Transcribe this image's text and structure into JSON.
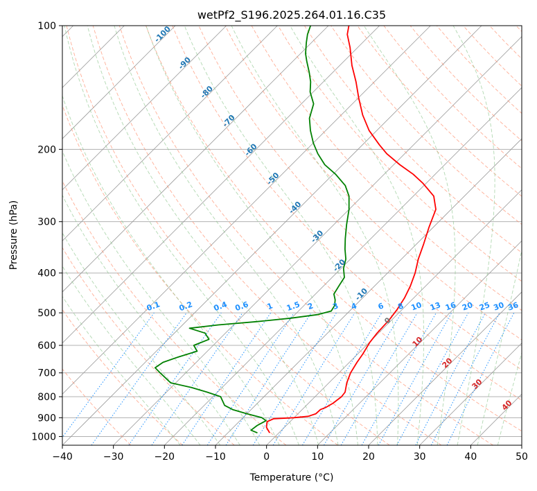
{
  "chart_data": {
    "type": "line",
    "title": "wetPf2_S196.2025.264.01.16.C35",
    "xlabel": "Temperature (°C)",
    "ylabel": "Pressure (hPa)",
    "xlim": [
      -40,
      50
    ],
    "ylim": [
      1050,
      100
    ],
    "yscale": "log",
    "grid": true,
    "x_ticks": [
      -40,
      -30,
      -20,
      -10,
      0,
      10,
      20,
      30,
      40,
      50
    ],
    "y_ticks": [
      100,
      200,
      300,
      400,
      500,
      600,
      700,
      800,
      900,
      1000
    ],
    "series": [
      {
        "role": "temperature",
        "color": "#ff0000",
        "points": [
          [
            -1.8,
            980
          ],
          [
            -3.5,
            950
          ],
          [
            -4.5,
            920
          ],
          [
            -3.8,
            905
          ],
          [
            0,
            900
          ],
          [
            2.5,
            893
          ],
          [
            3.5,
            880
          ],
          [
            3.6,
            860
          ],
          [
            4.2,
            850
          ],
          [
            4.8,
            830
          ],
          [
            5.2,
            800
          ],
          [
            5.0,
            780
          ],
          [
            3.5,
            740
          ],
          [
            2.3,
            700
          ],
          [
            1.5,
            660
          ],
          [
            1.0,
            630
          ],
          [
            0.1,
            590
          ],
          [
            -0.3,
            560
          ],
          [
            -0.5,
            520
          ],
          [
            -1.0,
            490
          ],
          [
            -1.8,
            460
          ],
          [
            -3.0,
            430
          ],
          [
            -4.6,
            400
          ],
          [
            -6.7,
            370
          ],
          [
            -8.6,
            340
          ],
          [
            -10.8,
            310
          ],
          [
            -13.0,
            280
          ],
          [
            -16.0,
            260
          ],
          [
            -18.5,
            250
          ],
          [
            -20.6,
            242
          ],
          [
            -24.3,
            230
          ],
          [
            -28.8,
            218
          ],
          [
            -33.5,
            205
          ],
          [
            -36.7,
            195
          ],
          [
            -41.5,
            180
          ],
          [
            -45.8,
            165
          ],
          [
            -49.9,
            150
          ],
          [
            -53.6,
            137
          ],
          [
            -57.6,
            125
          ],
          [
            -61.5,
            113
          ],
          [
            -64.6,
            105
          ],
          [
            -66.0,
            100
          ]
        ]
      },
      {
        "role": "dewpoint",
        "color": "#008000",
        "points": [
          [
            -4.2,
            980
          ],
          [
            -6.0,
            965
          ],
          [
            -5.7,
            940
          ],
          [
            -4.9,
            915
          ],
          [
            -6.3,
            900
          ],
          [
            -10.0,
            880
          ],
          [
            -13.6,
            860
          ],
          [
            -16.0,
            840
          ],
          [
            -18.5,
            800
          ],
          [
            -22.0,
            780
          ],
          [
            -26.0,
            760
          ],
          [
            -31.0,
            740
          ],
          [
            -35.0,
            700
          ],
          [
            -37.0,
            680
          ],
          [
            -36.5,
            660
          ],
          [
            -34.5,
            640
          ],
          [
            -32.0,
            620
          ],
          [
            -33.8,
            600
          ],
          [
            -32.0,
            580
          ],
          [
            -34.0,
            560
          ],
          [
            -38.0,
            545
          ],
          [
            -33.0,
            535
          ],
          [
            -26.0,
            525
          ],
          [
            -20.0,
            515
          ],
          [
            -15.6,
            505
          ],
          [
            -13.6,
            495
          ],
          [
            -14.0,
            480
          ],
          [
            -15.0,
            465
          ],
          [
            -16.4,
            450
          ],
          [
            -17.0,
            430
          ],
          [
            -17.6,
            410
          ],
          [
            -19.5,
            390
          ],
          [
            -20.9,
            370
          ],
          [
            -23.0,
            350
          ],
          [
            -25.0,
            330
          ],
          [
            -27.5,
            305
          ],
          [
            -30.0,
            280
          ],
          [
            -32.6,
            260
          ],
          [
            -35.4,
            245
          ],
          [
            -39.5,
            230
          ],
          [
            -43.5,
            218
          ],
          [
            -47.0,
            205
          ],
          [
            -50.0,
            193
          ],
          [
            -53.0,
            180
          ],
          [
            -55.6,
            168
          ],
          [
            -57.6,
            155
          ],
          [
            -60.6,
            145
          ],
          [
            -62.5,
            137
          ],
          [
            -64.6,
            130
          ],
          [
            -67.3,
            122
          ],
          [
            -69.0,
            117
          ],
          [
            -71.0,
            110
          ],
          [
            -72.4,
            105
          ],
          [
            -73.5,
            100
          ]
        ]
      }
    ],
    "dry_adiabat_labels": [
      "-100",
      "-90",
      "-80",
      "-70",
      "-60",
      "-50",
      "-40",
      "-30",
      "-20",
      "-10",
      "0",
      "10",
      "20",
      "30",
      "40"
    ],
    "mixing_ratio_labels": [
      "0.1",
      "0.2",
      "0.4",
      "0.6",
      "1",
      "1.5",
      "2",
      "3",
      "4",
      "6",
      "8",
      "10",
      "13",
      "16",
      "20",
      "25",
      "30",
      "36"
    ],
    "colors": {
      "temperature": "#ff0000",
      "dewpoint": "#008000",
      "mixing_ratio": "#1e90ff",
      "dry_adiabat": "#ff8c69",
      "moist_adiabat": "#90c890",
      "grid": "#b0b0b0",
      "isotherm": "#9a9a9a",
      "label_blue": "#1f77b4",
      "label_red": "#d62728"
    }
  }
}
